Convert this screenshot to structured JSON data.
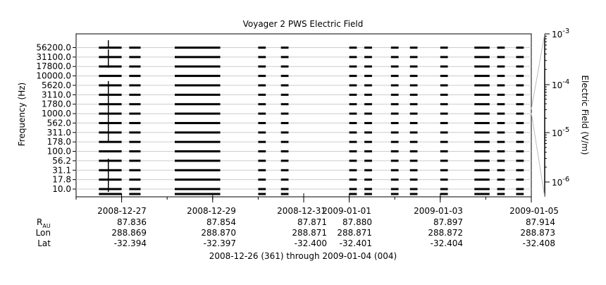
{
  "chart_data": {
    "type": "heatmap",
    "title": "Voyager 2 PWS Electric Field",
    "ylabel": "Frequency (Hz)",
    "y_tick_labels": [
      "56200.0",
      "31100.0",
      "17800.0",
      "10000.0",
      "5620.0",
      "3110.0",
      "1780.0",
      "1000.0",
      "562.0",
      "311.0",
      "178.0",
      "100.0",
      "56.2",
      "31.1",
      "17.8",
      "10.0"
    ],
    "y_scale": "log",
    "x_tick_labels": [
      "2008-12-27",
      "2008-12-29",
      "2008-12-31",
      "2009-01-01",
      "2009-01-03",
      "2009-01-05"
    ],
    "x_range": [
      "2008-12-26",
      "2009-01-05"
    ],
    "colorbar": {
      "label": "Electric Field (V/m)",
      "scale": "log",
      "ticks": [
        {
          "base": "10",
          "exp": "-3"
        },
        {
          "base": "10",
          "exp": "-4"
        },
        {
          "base": "10",
          "exp": "-5"
        },
        {
          "base": "10",
          "exp": "-6"
        }
      ]
    },
    "data_segments": [
      [
        "2008-12-26T12:00",
        "2008-12-27T00:00"
      ],
      [
        "2008-12-27T04:00",
        "2008-12-27T10:00"
      ],
      [
        "2008-12-28T04:00",
        "2008-12-29T04:00"
      ],
      [
        "2008-12-30T00:00",
        "2008-12-30T04:00"
      ],
      [
        "2008-12-30T12:00",
        "2008-12-30T16:00"
      ],
      [
        "2009-01-01T00:00",
        "2009-01-01T04:00"
      ],
      [
        "2009-01-01T08:00",
        "2009-01-01T12:00"
      ],
      [
        "2009-01-01T22:00",
        "2009-01-02T02:00"
      ],
      [
        "2009-01-02T08:00",
        "2009-01-02T12:00"
      ],
      [
        "2009-01-03T00:00",
        "2009-01-03T04:00"
      ],
      [
        "2009-01-03T18:00",
        "2009-01-04T02:00"
      ],
      [
        "2009-01-04T06:00",
        "2009-01-04T10:00"
      ],
      [
        "2009-01-04T16:00",
        "2009-01-04T20:00"
      ]
    ]
  },
  "ephemeris": {
    "rows": [
      {
        "label": "R",
        "label_sub": "AU",
        "values": [
          "87.836",
          "87.854",
          "87.871",
          "87.880",
          "87.897",
          "87.914"
        ]
      },
      {
        "label": "Lon",
        "label_sub": "",
        "values": [
          "288.869",
          "288.870",
          "288.871",
          "288.871",
          "288.872",
          "288.873"
        ]
      },
      {
        "label": "Lat",
        "label_sub": "",
        "values": [
          "-32.394",
          "-32.397",
          "-32.400",
          "-32.401",
          "-32.404",
          "-32.408"
        ]
      }
    ],
    "date_range": "2008-12-26 (361) through 2009-01-04 (004)"
  }
}
